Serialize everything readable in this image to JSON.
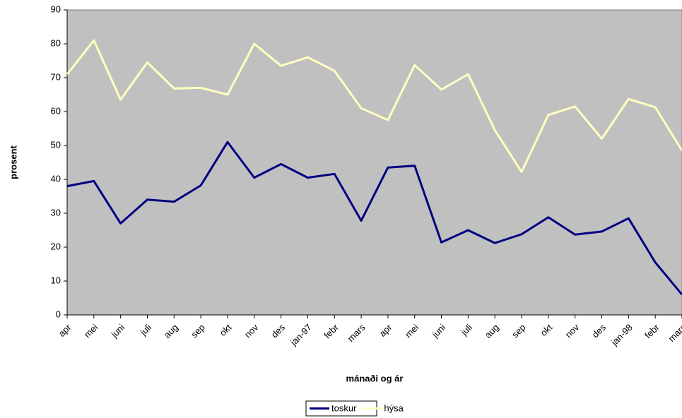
{
  "chart_data": {
    "type": "line",
    "xlabel": "mánaði og ár",
    "ylabel": "prosent",
    "categories": [
      "apr",
      "mei",
      "juni",
      "juli",
      "aug",
      "sep",
      "okt",
      "nov",
      "des",
      "jan-97",
      "febr",
      "mars",
      "apr",
      "mei",
      "juni",
      "juli",
      "aug",
      "sep",
      "okt",
      "nov",
      "des",
      "jan-98",
      "febr",
      "mars"
    ],
    "series": [
      {
        "name": "toskur",
        "color": "#000080",
        "values": [
          38,
          39.5,
          27,
          34,
          33.4,
          38.2,
          51,
          40.5,
          44.5,
          40.5,
          41.6,
          27.8,
          43.5,
          44,
          21.4,
          25,
          21.2,
          23.8,
          28.8,
          23.7,
          24.6,
          28.5,
          15.5,
          6
        ]
      },
      {
        "name": "hýsa",
        "color": "#ffffc0",
        "values": [
          71,
          81,
          63.5,
          74.5,
          66.8,
          67,
          65,
          80,
          73.5,
          76,
          72,
          61,
          57.5,
          73.7,
          66.5,
          71,
          54.5,
          42.2,
          59,
          61.5,
          52,
          63.7,
          61.3,
          48.5
        ]
      }
    ],
    "ylim": [
      0,
      90
    ],
    "yticks": [
      0,
      10,
      20,
      30,
      40,
      50,
      60,
      70,
      80,
      90
    ],
    "background": "#c0c0c0",
    "legend": "bottom"
  }
}
